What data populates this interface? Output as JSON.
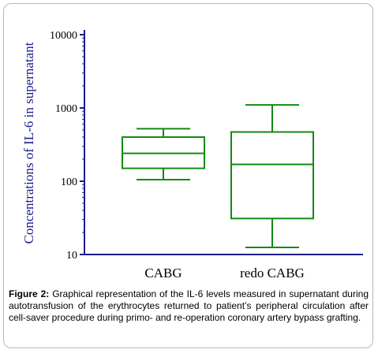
{
  "chart_data": {
    "type": "box",
    "ylabel": "Concentrations of IL-6 in supernatant",
    "yscale": "log",
    "ylim": [
      10,
      10000
    ],
    "yticks": [
      10,
      100,
      1000,
      10000
    ],
    "ytick_labels": [
      "10",
      "100",
      "1000",
      "10000"
    ],
    "categories": [
      "CABG",
      "redo CABG"
    ],
    "boxes": [
      {
        "category": "CABG",
        "min": 105,
        "q1": 150,
        "median": 240,
        "q3": 400,
        "max": 520
      },
      {
        "category": "redo CABG",
        "min": 12.5,
        "q1": 31,
        "median": 170,
        "q3": 470,
        "max": 1100
      }
    ],
    "colors": {
      "axis": "#1c1c8c",
      "box": "#138a13",
      "ylabel": "#1c1c8c"
    }
  },
  "caption": {
    "label": "Figure 2:",
    "text": "Graphical representation of the IL-6 levels measured in supernatant during autotransfusion of the erythrocytes returned to patient’s peripheral circulation after cell-saver procedure during primo- and re-operation coronary artery bypass grafting."
  }
}
